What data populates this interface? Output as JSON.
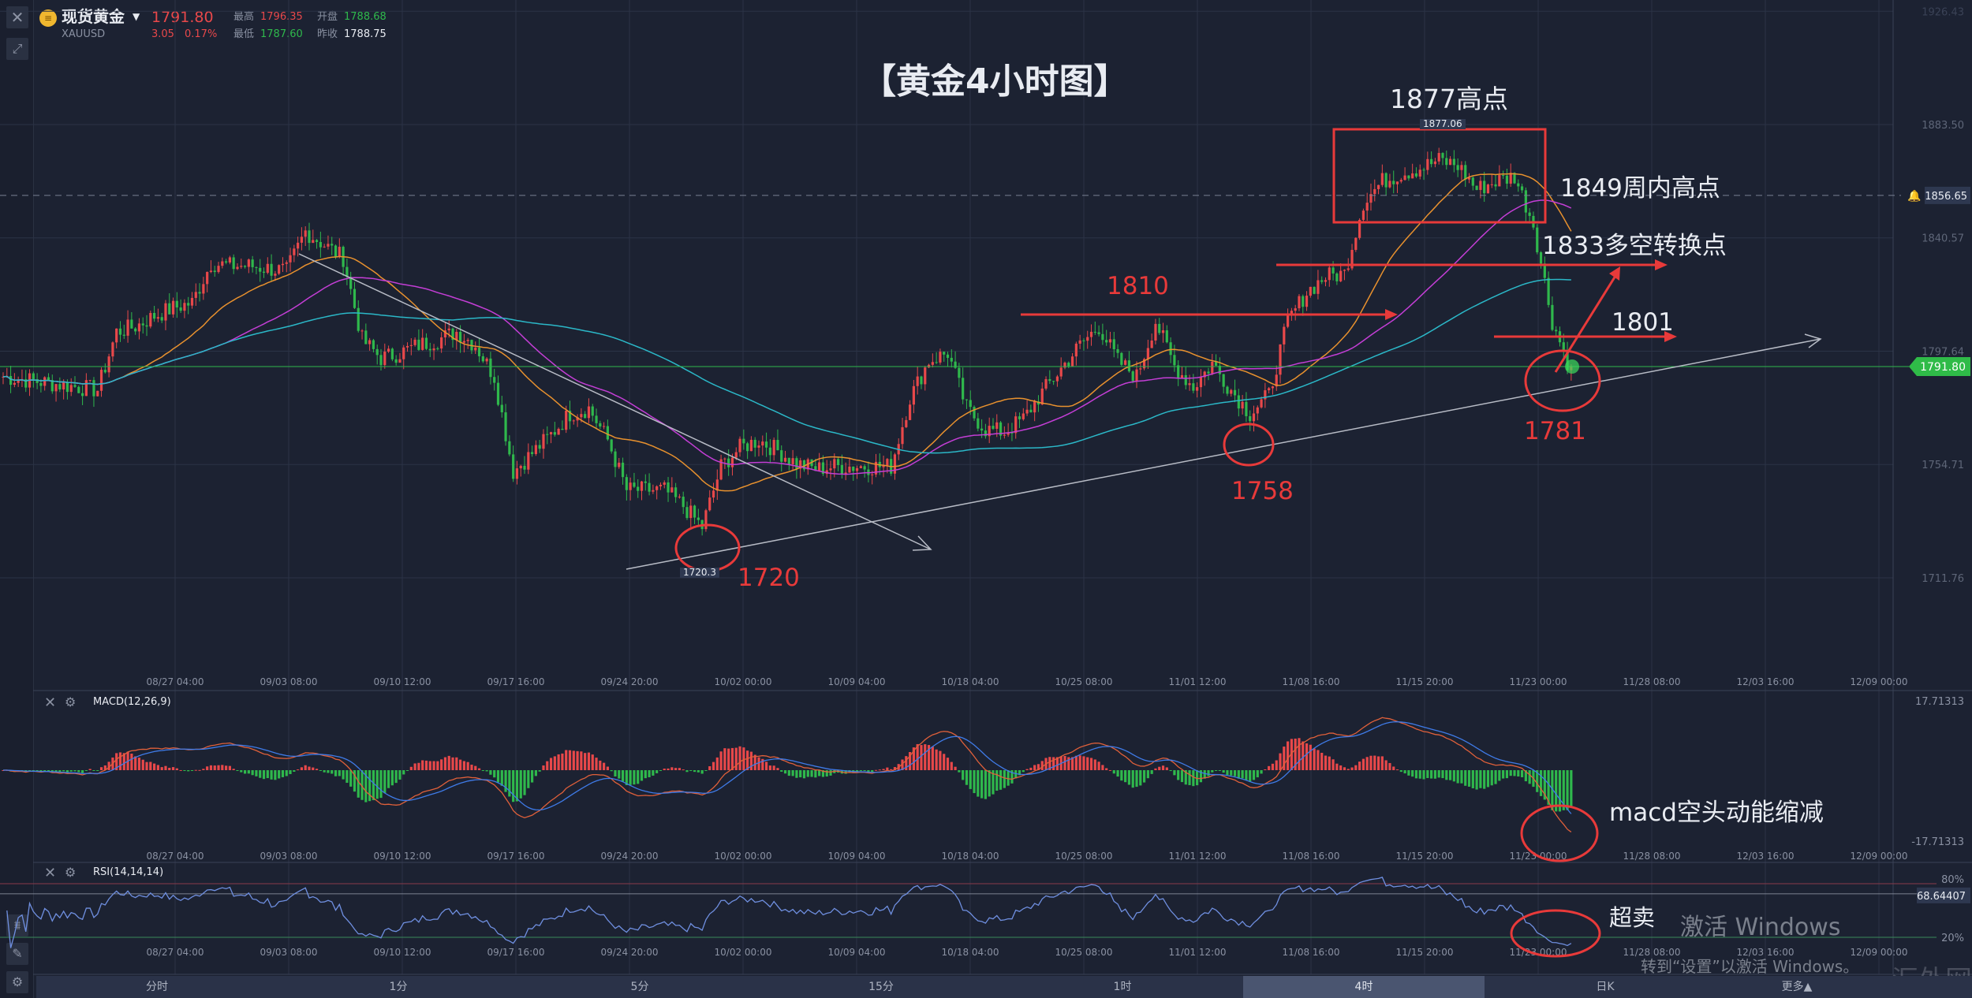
{
  "instrument": {
    "name": "现货黄金",
    "symbol": "XAUUSD",
    "price": "1791.80",
    "change": "3.05",
    "change_pct": "0.17%",
    "high_label": "最高",
    "high": "1796.35",
    "low_label": "最低",
    "low": "1787.60",
    "open_label": "开盘",
    "open": "1788.68",
    "prev_close_label": "昨收",
    "prev_close": "1788.75"
  },
  "colors": {
    "background": "#1c2232",
    "up": "#e8484a",
    "down": "#2fb84c",
    "ma_short": "#e8912e",
    "ma_mid": "#c43ed6",
    "ma_long": "#2bb8c8",
    "annotation": "#e83a3a"
  },
  "price_axis": {
    "labels": [
      "1926.43",
      "1883.50",
      "1840.57",
      "1797.64",
      "1754.71",
      "1711.76"
    ],
    "alert_line": "1856.65",
    "current": "1791.80"
  },
  "time_axis": [
    "08/27 04:00",
    "09/03 08:00",
    "09/10 12:00",
    "09/17 16:00",
    "09/24 20:00",
    "10/02 00:00",
    "10/09 04:00",
    "10/18 04:00",
    "10/25 08:00",
    "11/01 12:00",
    "11/08 16:00",
    "11/15 20:00",
    "11/23 00:00",
    "11/28 08:00",
    "12/03 16:00",
    "12/09 00:00"
  ],
  "chart_data": {
    "type": "candlestick",
    "interval": "4时",
    "closes_sampled": [
      1788,
      1787,
      1786,
      1785,
      1784,
      1783,
      1805,
      1807,
      1811,
      1814,
      1816,
      1831,
      1830,
      1830,
      1829,
      1828,
      1843,
      1838,
      1833,
      1802,
      1795,
      1797,
      1800,
      1802,
      1805,
      1800,
      1788,
      1752,
      1759,
      1766,
      1774,
      1776,
      1764,
      1745,
      1745,
      1745,
      1739,
      1731,
      1754,
      1761,
      1764,
      1760,
      1755,
      1753,
      1754,
      1754,
      1754,
      1754,
      1780,
      1794,
      1797,
      1776,
      1768,
      1767,
      1772,
      1782,
      1791,
      1800,
      1807,
      1794,
      1788,
      1809,
      1792,
      1784,
      1793,
      1783,
      1774,
      1781,
      1809,
      1820,
      1826,
      1827,
      1854,
      1862,
      1865,
      1867,
      1870,
      1868,
      1859,
      1862,
      1864,
      1846,
      1809,
      1790
    ],
    "ylim": [
      1711.76,
      1926.43
    ]
  },
  "annotations": {
    "title": "【黄金4小时图】",
    "high_1877": "1877高点",
    "high_marker": "1877.06",
    "weekly_high": "1849周内高点",
    "pivot": "1833多空转换点",
    "level_1810": "1810",
    "level_1801": "1801",
    "low_1781": "1781",
    "low_1758": "1758",
    "low_1720": "1720",
    "low_marker": "1720.3",
    "macd_note": "macd空头动能缩减",
    "rsi_note": "超卖"
  },
  "macd": {
    "label": "MACD(12,26,9)",
    "max": "17.71313",
    "min": "-17.71313"
  },
  "rsi": {
    "label": "RSI(14,14,14)",
    "upper": "80%",
    "lower": "20%",
    "value": "68.64407"
  },
  "timeframes": [
    {
      "label": "分时"
    },
    {
      "label": "1分"
    },
    {
      "label": "5分"
    },
    {
      "label": "15分"
    },
    {
      "label": "1时"
    },
    {
      "label": "4时",
      "active": true
    },
    {
      "label": "日K"
    },
    {
      "label": "更多▲"
    }
  ],
  "watermark": {
    "line1": "激活 Windows",
    "line2": "转到“设置”以激活 Windows。",
    "brand": "汇外网"
  }
}
